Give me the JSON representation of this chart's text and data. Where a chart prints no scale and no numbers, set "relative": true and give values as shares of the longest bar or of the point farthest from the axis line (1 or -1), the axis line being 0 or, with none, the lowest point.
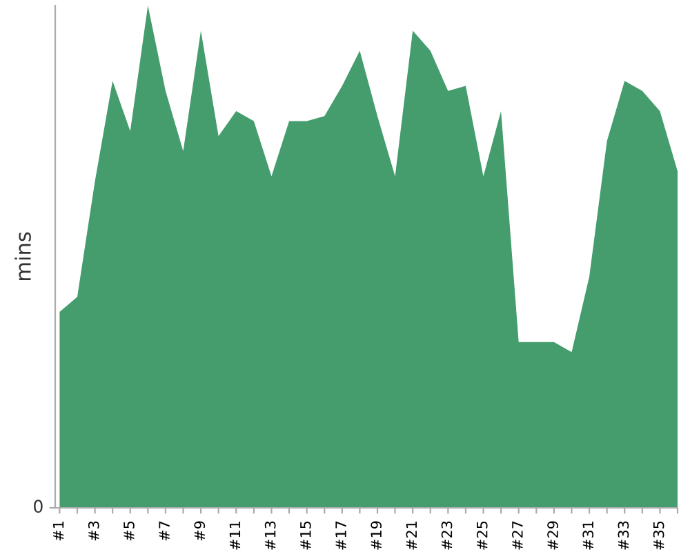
{
  "chart_data": {
    "type": "area",
    "ylabel": "mins",
    "relative": true,
    "annotations": [
      "0"
    ],
    "categories": [
      "#1",
      null,
      "#3",
      null,
      "#5",
      null,
      "#7",
      null,
      "#9",
      null,
      "#11",
      null,
      "#13",
      null,
      "#15",
      null,
      "#17",
      null,
      "#19",
      null,
      "#21",
      null,
      "#23",
      null,
      "#25",
      null,
      "#27",
      null,
      "#29",
      null,
      "#31",
      null,
      "#33",
      null,
      "#35",
      null
    ],
    "color": "#459d6d",
    "values": [
      0.39,
      0.42,
      0.65,
      0.85,
      0.75,
      1.0,
      0.83,
      0.71,
      0.95,
      0.74,
      0.79,
      0.77,
      0.66,
      0.77,
      0.77,
      0.78,
      0.84,
      0.91,
      0.78,
      0.66,
      0.95,
      0.91,
      0.83,
      0.84,
      0.66,
      0.79,
      0.33,
      0.33,
      0.33,
      0.31,
      0.46,
      0.73,
      0.85,
      0.83,
      0.79,
      0.67
    ],
    "grid": false
  }
}
